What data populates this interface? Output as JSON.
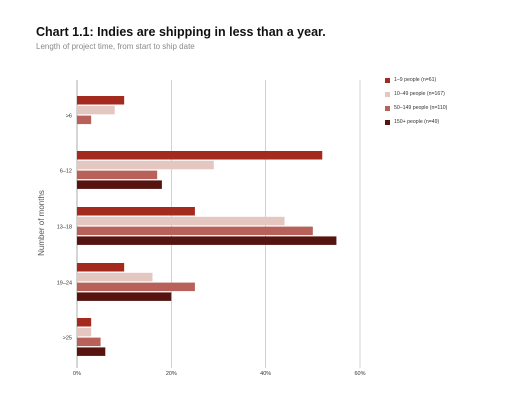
{
  "chart_data": {
    "type": "bar",
    "orientation": "horizontal",
    "title": "Chart 1.1: Indies are shipping in less than a year.",
    "subtitle": "Length of project time, from start to ship date",
    "ylabel": "Number of months",
    "xlabel": "",
    "categories": [
      ">6",
      "6–12",
      "13–18",
      "19–24",
      ">25"
    ],
    "x_ticks": [
      "0%",
      "20%",
      "40%",
      "60%"
    ],
    "xlim": [
      0,
      60
    ],
    "grid": true,
    "legend_position": "top-right",
    "series": [
      {
        "name": "1–9 people (n=61)",
        "color": "#a32a1d",
        "values": [
          10,
          52,
          25,
          10,
          3
        ]
      },
      {
        "name": "10–49 people (n=167)",
        "color": "#e5c7c2",
        "values": [
          8,
          29,
          44,
          16,
          3
        ]
      },
      {
        "name": "50–149 people (n=110)",
        "color": "#b8615a",
        "values": [
          3,
          17,
          50,
          25,
          5
        ]
      },
      {
        "name": "150+ people (n=49)",
        "color": "#561410",
        "values": [
          0,
          18,
          55,
          20,
          6
        ]
      }
    ]
  }
}
